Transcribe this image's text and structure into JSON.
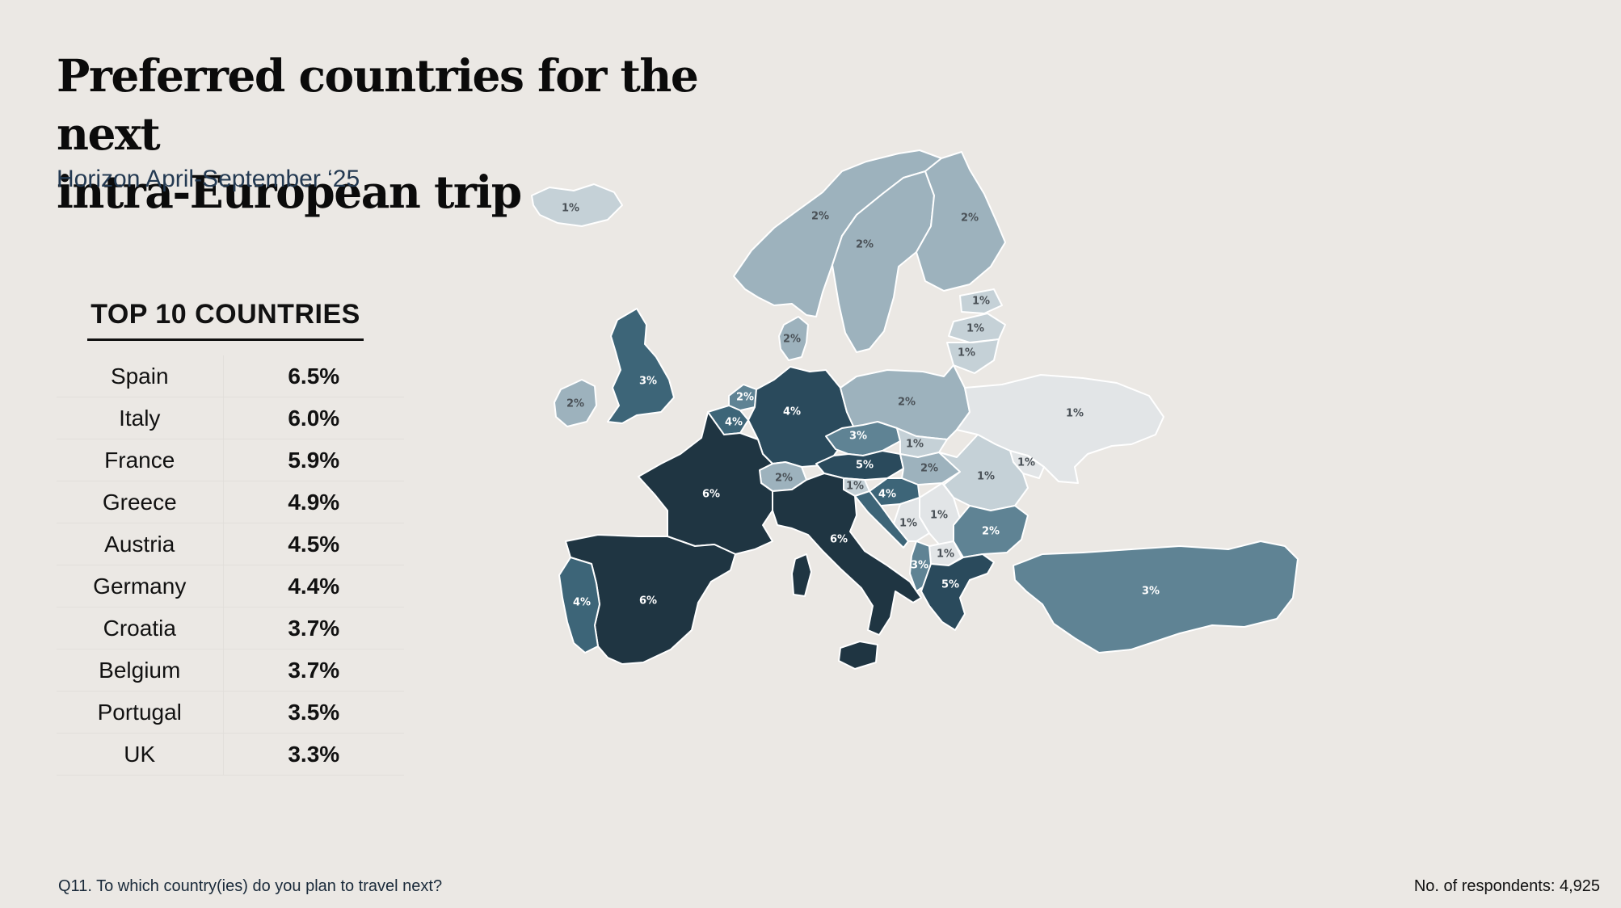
{
  "title_line1": "Preferred countries for the next",
  "title_line2": "intra-European trip",
  "subtitle": "Horizon April-September ‘25",
  "top10": {
    "heading": "TOP 10 COUNTRIES",
    "rows": [
      {
        "country": "Spain",
        "value": "6.5%"
      },
      {
        "country": "Italy",
        "value": "6.0%"
      },
      {
        "country": "France",
        "value": "5.9%"
      },
      {
        "country": "Greece",
        "value": "4.9%"
      },
      {
        "country": "Austria",
        "value": "4.5%"
      },
      {
        "country": "Germany",
        "value": "4.4%"
      },
      {
        "country": "Croatia",
        "value": "3.7%"
      },
      {
        "country": "Belgium",
        "value": "3.7%"
      },
      {
        "country": "Portugal",
        "value": "3.5%"
      },
      {
        "country": "UK",
        "value": "3.3%"
      }
    ]
  },
  "map": {
    "colors": {
      "1": "#c5d1d7",
      "1_light": "#e2e5e7",
      "2": "#9db2bd",
      "3": "#5f8394",
      "4": "#3d6578",
      "5": "#2a4a5c",
      "6": "#1f3542"
    },
    "countries": [
      {
        "id": "iceland",
        "label": "1%",
        "level": 1
      },
      {
        "id": "norway",
        "label": "2%",
        "level": 2
      },
      {
        "id": "sweden",
        "label": "2%",
        "level": 2
      },
      {
        "id": "finland",
        "label": "2%",
        "level": 2
      },
      {
        "id": "estonia",
        "label": "1%",
        "level": 1
      },
      {
        "id": "latvia",
        "label": "1%",
        "level": 1
      },
      {
        "id": "lithuania",
        "label": "1%",
        "level": 1
      },
      {
        "id": "denmark",
        "label": "2%",
        "level": 2
      },
      {
        "id": "ireland",
        "label": "2%",
        "level": 2
      },
      {
        "id": "uk",
        "label": "3%",
        "level": 4
      },
      {
        "id": "netherlands",
        "label": "2%",
        "level": 3
      },
      {
        "id": "belgium",
        "label": "4%",
        "level": 4
      },
      {
        "id": "germany",
        "label": "4%",
        "level": 5
      },
      {
        "id": "poland",
        "label": "2%",
        "level": 2
      },
      {
        "id": "czechia",
        "label": "3%",
        "level": 3
      },
      {
        "id": "slovakia",
        "label": "1%",
        "level": 1
      },
      {
        "id": "austria",
        "label": "5%",
        "level": 5
      },
      {
        "id": "switzerland",
        "label": "2%",
        "level": 2
      },
      {
        "id": "hungary",
        "label": "2%",
        "level": 2
      },
      {
        "id": "slovenia",
        "label": "1%",
        "level": 1
      },
      {
        "id": "croatia",
        "label": "4%",
        "level": 4
      },
      {
        "id": "ukraine",
        "label": "1%",
        "level": 0
      },
      {
        "id": "moldova",
        "label": "1%",
        "level": 0
      },
      {
        "id": "romania",
        "label": "1%",
        "level": 1
      },
      {
        "id": "serbia",
        "label": "1%",
        "level": 0
      },
      {
        "id": "bosnia",
        "label": "1%",
        "level": 0
      },
      {
        "id": "north-macedonia",
        "label": "1%",
        "level": 0
      },
      {
        "id": "bulgaria",
        "label": "2%",
        "level": 3
      },
      {
        "id": "albania",
        "label": "3%",
        "level": 3
      },
      {
        "id": "greece",
        "label": "5%",
        "level": 5
      },
      {
        "id": "turkey",
        "label": "3%",
        "level": 3
      },
      {
        "id": "france",
        "label": "6%",
        "level": 6
      },
      {
        "id": "italy",
        "label": "6%",
        "level": 6
      },
      {
        "id": "spain",
        "label": "6%",
        "level": 6
      },
      {
        "id": "portugal",
        "label": "4%",
        "level": 4
      }
    ]
  },
  "footnote": "Q11. To which country(ies) do you plan to travel next?",
  "respondents": "No. of respondents: 4,925"
}
